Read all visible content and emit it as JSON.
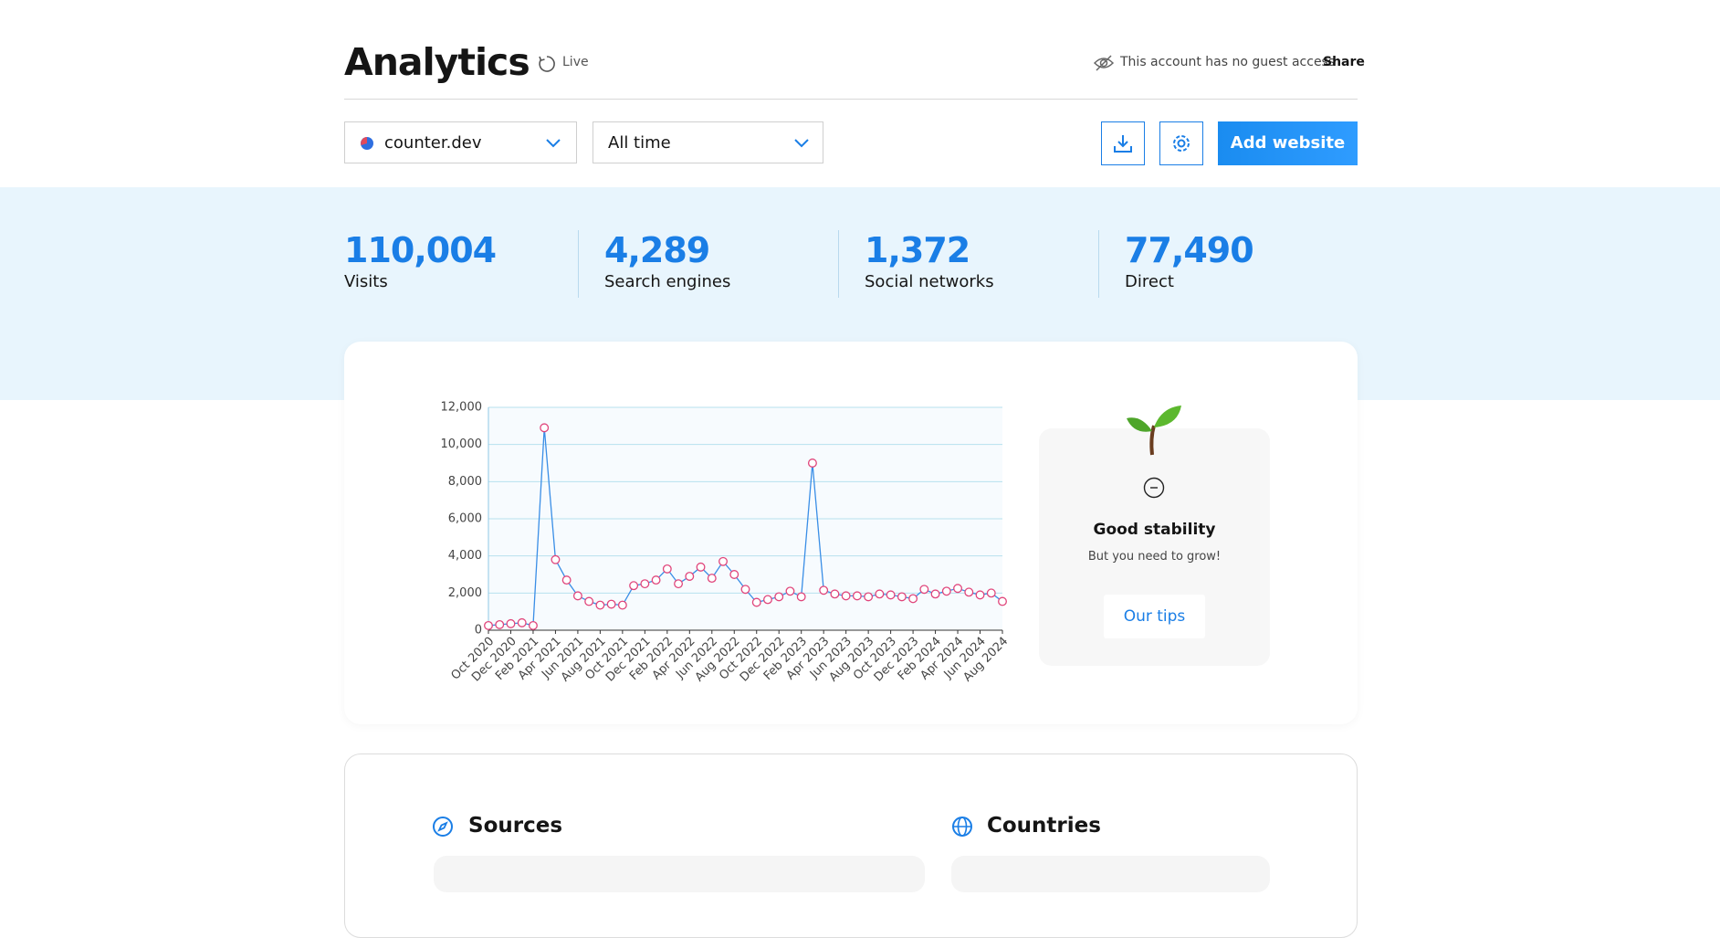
{
  "header": {
    "title": "Analytics",
    "live": "Live",
    "guest_notice": "This account has no guest access",
    "share": "Share"
  },
  "controls": {
    "site": "counter.dev",
    "range": "All time",
    "add_website": "Add website"
  },
  "stats": [
    {
      "value": "110,004",
      "label": "Visits"
    },
    {
      "value": "4,289",
      "label": "Search engines"
    },
    {
      "value": "1,372",
      "label": "Social networks"
    },
    {
      "value": "77,490",
      "label": "Direct"
    }
  ],
  "chart_data": {
    "type": "line",
    "categories": [
      "Oct 2020",
      null,
      "Dec 2020",
      null,
      "Feb 2021",
      null,
      "Apr 2021",
      null,
      "Jun 2021",
      null,
      "Aug 2021",
      null,
      "Oct 2021",
      null,
      "Dec 2021",
      null,
      "Feb 2022",
      null,
      "Apr 2022",
      null,
      "Jun 2022",
      null,
      "Aug 2022",
      null,
      "Oct 2022",
      null,
      "Dec 2022",
      null,
      "Feb 2023",
      null,
      "Apr 2023",
      null,
      "Jun 2023",
      null,
      "Aug 2023",
      null,
      "Oct 2023",
      null,
      "Dec 2023",
      null,
      "Feb 2024",
      null,
      "Apr 2024",
      null,
      "Jun 2024",
      null,
      "Aug 2024"
    ],
    "values": [
      250,
      300,
      350,
      400,
      250,
      10900,
      3800,
      2700,
      1850,
      1550,
      1350,
      1400,
      1350,
      2400,
      2500,
      2700,
      3300,
      2500,
      2900,
      3400,
      2800,
      3700,
      3000,
      2200,
      1500,
      1650,
      1800,
      2100,
      1800,
      9000,
      2150,
      1950,
      1850,
      1850,
      1800,
      1950,
      1900,
      1800,
      1700,
      2200,
      1950,
      2100,
      2250,
      2050,
      1900,
      2000,
      1550
    ],
    "color": "#3a8ee6",
    "marker_color": "#e0457b",
    "ylim": [
      0,
      12000
    ],
    "yticks": [
      0,
      {
        "value": 2000,
        "label": "2,000"
      },
      {
        "value": 4000,
        "label": "4,000"
      },
      {
        "value": 6000,
        "label": "6,000"
      },
      {
        "value": 8000,
        "label": "8,000"
      },
      {
        "value": 10000,
        "label": "10,000"
      },
      {
        "value": 12000,
        "label": "12,000"
      }
    ],
    "grid": true
  },
  "stability": {
    "title": "Good stability",
    "text": "But you need to grow!",
    "button": "Our tips"
  },
  "sections": {
    "sources": "Sources",
    "countries": "Countries"
  }
}
